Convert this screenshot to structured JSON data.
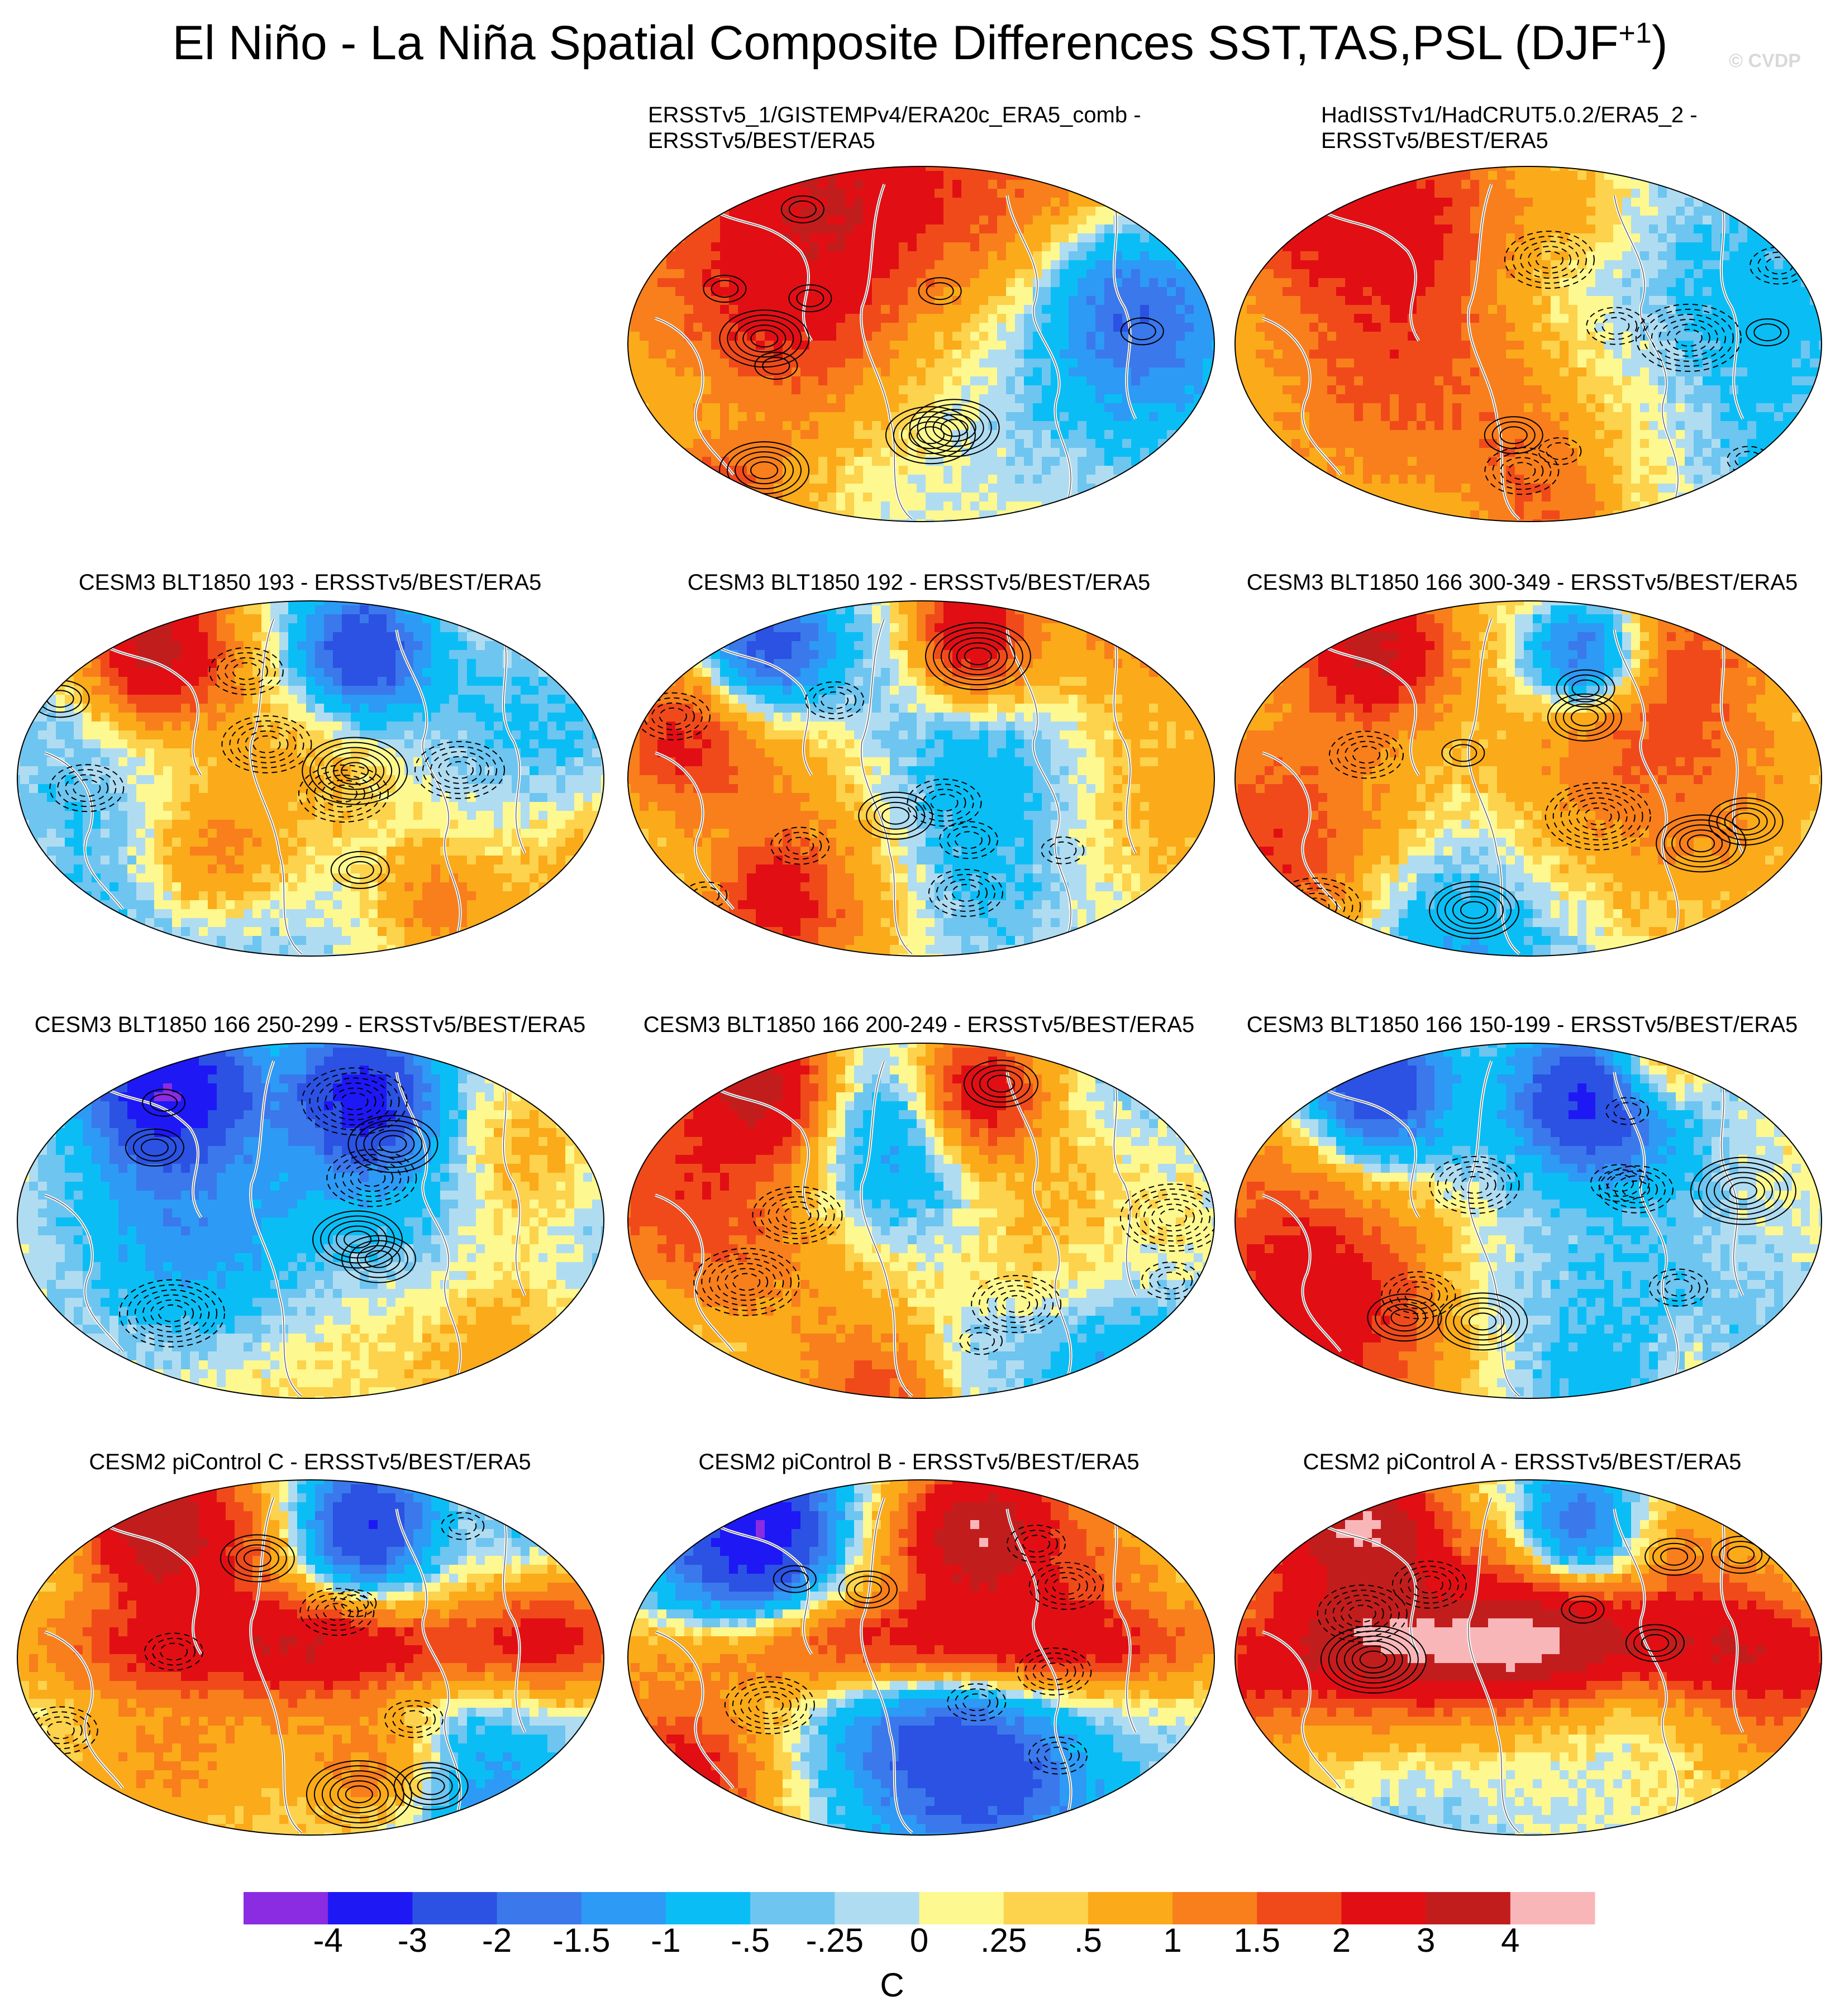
{
  "figure": {
    "title_main": "El Niño - La Niña Spatial Composite Differences SST,TAS,PSL (DJF",
    "title_sup": "+1",
    "title_end": ")",
    "watermark": "© CVDP"
  },
  "chart_data": {
    "type": "heatmap",
    "title": "El Niño - La Niña Spatial Composite Differences SST,TAS,PSL (DJF+1)",
    "colorbar": {
      "units": "C",
      "tick_labels": [
        "-4",
        "-3",
        "-2",
        "-1.5",
        "-1",
        "-.5",
        "-.25",
        "0",
        ".25",
        ".5",
        "1",
        "1.5",
        "2",
        "3",
        "4"
      ],
      "levels": [
        -4,
        -3,
        -2,
        -1.5,
        -1,
        -0.5,
        -0.25,
        0,
        0.25,
        0.5,
        1,
        1.5,
        2,
        3,
        4
      ],
      "colors": [
        "#8B2BE2",
        "#1E18F5",
        "#2B52E3",
        "#3A78EC",
        "#2D9AF5",
        "#0ABEF5",
        "#6EC5F0",
        "#B0DCF1",
        "#FDF88F",
        "#FDD24C",
        "#FBAA1A",
        "#F87F1C",
        "#F04A1B",
        "#E10F14",
        "#C21D1D",
        "#F9B6B9"
      ]
    },
    "contours": "PSL differences (solid = positive, dashed = negative)",
    "panels": [
      {
        "title_line1": "ERSSTv5_1/GISTEMPv4/ERA20c_ERA5_comb -",
        "title_line2": "ERSSTv5/BEST/ERA5"
      },
      {
        "title_line1": "HadISSTv1/HadCRUT5.0.2/ERA5_2 -",
        "title_line2": "ERSSTv5/BEST/ERA5"
      },
      {
        "title_line1": "CESM3 BLT1850 193 - ERSSTv5/BEST/ERA5"
      },
      {
        "title_line1": "CESM3 BLT1850 192 - ERSSTv5/BEST/ERA5"
      },
      {
        "title_line1": "CESM3 BLT1850 166 300-349 - ERSSTv5/BEST/ERA5"
      },
      {
        "title_line1": "CESM3 BLT1850 166 250-299 - ERSSTv5/BEST/ERA5"
      },
      {
        "title_line1": "CESM3 BLT1850 166 200-249 - ERSSTv5/BEST/ERA5"
      },
      {
        "title_line1": "CESM3 BLT1850 166 150-199 - ERSSTv5/BEST/ERA5"
      },
      {
        "title_line1": "CESM2 piControl C - ERSSTv5/BEST/ERA5"
      },
      {
        "title_line1": "CESM2 piControl B - ERSSTv5/BEST/ERA5"
      },
      {
        "title_line1": "CESM2 piControl A - ERSSTv5/BEST/ERA5"
      }
    ]
  }
}
